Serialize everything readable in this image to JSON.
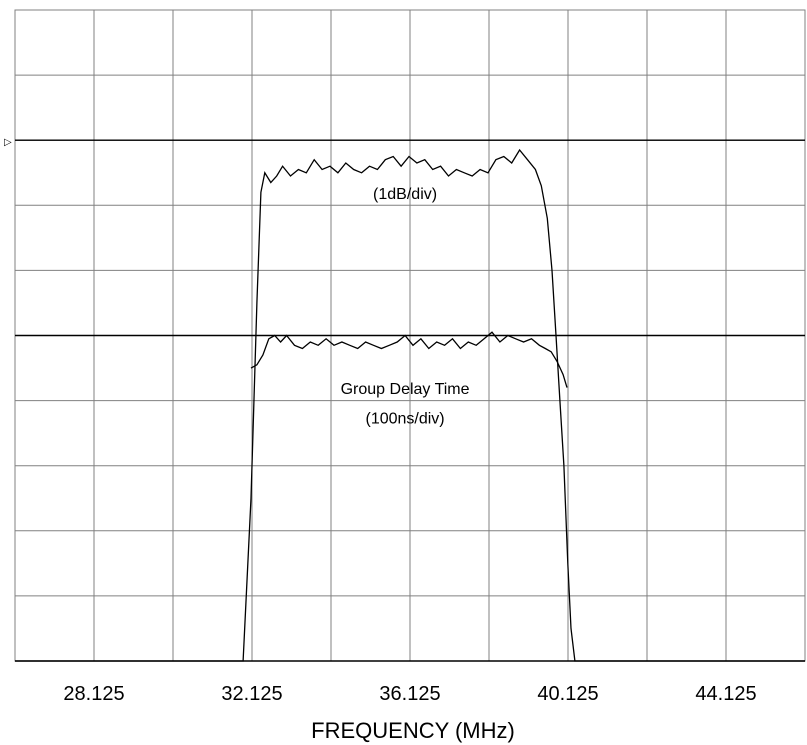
{
  "chart_data": {
    "type": "line",
    "xlabel": "FREQUENCY (MHz)",
    "x_tick_labels": [
      "28.125",
      "32.125",
      "36.125",
      "40.125",
      "44.125"
    ],
    "xlim": [
      26.125,
      46.125
    ],
    "ylim": [
      0,
      10
    ],
    "grid": true,
    "reference_marker": "▷",
    "annotations": [
      {
        "text": "(1dB/div)",
        "x": 36.0,
        "y": 7.1
      },
      {
        "text": "Group Delay Time",
        "x": 36.0,
        "y": 4.1
      },
      {
        "text": "(100ns/div)",
        "x": 36.0,
        "y": 3.65
      }
    ],
    "series": [
      {
        "color": "#000000",
        "x": [
          26.125,
          31.9,
          32.1,
          32.25,
          32.35,
          32.45,
          32.6,
          32.75,
          32.9,
          33.1,
          33.3,
          33.5,
          33.7,
          33.9,
          34.1,
          34.3,
          34.5,
          34.7,
          34.9,
          35.1,
          35.3,
          35.5,
          35.7,
          35.9,
          36.1,
          36.3,
          36.5,
          36.7,
          36.9,
          37.1,
          37.3,
          37.5,
          37.7,
          37.9,
          38.1,
          38.3,
          38.5,
          38.7,
          38.9,
          39.1,
          39.3,
          39.45,
          39.6,
          39.72,
          39.82,
          39.92,
          40.02,
          40.12,
          40.2,
          40.3,
          46.125
        ],
        "y": [
          0,
          0,
          2.5,
          5.5,
          7.2,
          7.5,
          7.35,
          7.45,
          7.6,
          7.45,
          7.55,
          7.5,
          7.7,
          7.55,
          7.6,
          7.5,
          7.65,
          7.55,
          7.5,
          7.6,
          7.55,
          7.7,
          7.75,
          7.6,
          7.75,
          7.65,
          7.7,
          7.55,
          7.6,
          7.45,
          7.55,
          7.5,
          7.45,
          7.55,
          7.5,
          7.7,
          7.75,
          7.65,
          7.85,
          7.7,
          7.55,
          7.3,
          6.8,
          6.0,
          5.0,
          4.0,
          3.0,
          1.5,
          0.5,
          0,
          0
        ]
      },
      {
        "color": "#000000",
        "x": [
          32.1,
          32.25,
          32.4,
          32.55,
          32.7,
          32.85,
          33.0,
          33.2,
          33.4,
          33.6,
          33.8,
          34.0,
          34.2,
          34.4,
          34.6,
          34.8,
          35.0,
          35.2,
          35.4,
          35.6,
          35.8,
          36.0,
          36.2,
          36.4,
          36.6,
          36.8,
          37.0,
          37.2,
          37.4,
          37.6,
          37.8,
          38.0,
          38.2,
          38.4,
          38.6,
          38.8,
          39.0,
          39.2,
          39.4,
          39.55,
          39.7,
          39.85,
          40.0,
          40.1
        ],
        "y": [
          4.5,
          4.55,
          4.7,
          4.95,
          5.0,
          4.9,
          5.0,
          4.85,
          4.8,
          4.9,
          4.85,
          4.95,
          4.85,
          4.9,
          4.85,
          4.8,
          4.9,
          4.85,
          4.8,
          4.85,
          4.9,
          5.0,
          4.85,
          4.95,
          4.8,
          4.9,
          4.85,
          4.95,
          4.8,
          4.9,
          4.85,
          4.95,
          5.05,
          4.9,
          5.0,
          4.95,
          4.9,
          4.95,
          4.85,
          4.8,
          4.75,
          4.6,
          4.4,
          4.2
        ]
      }
    ]
  }
}
